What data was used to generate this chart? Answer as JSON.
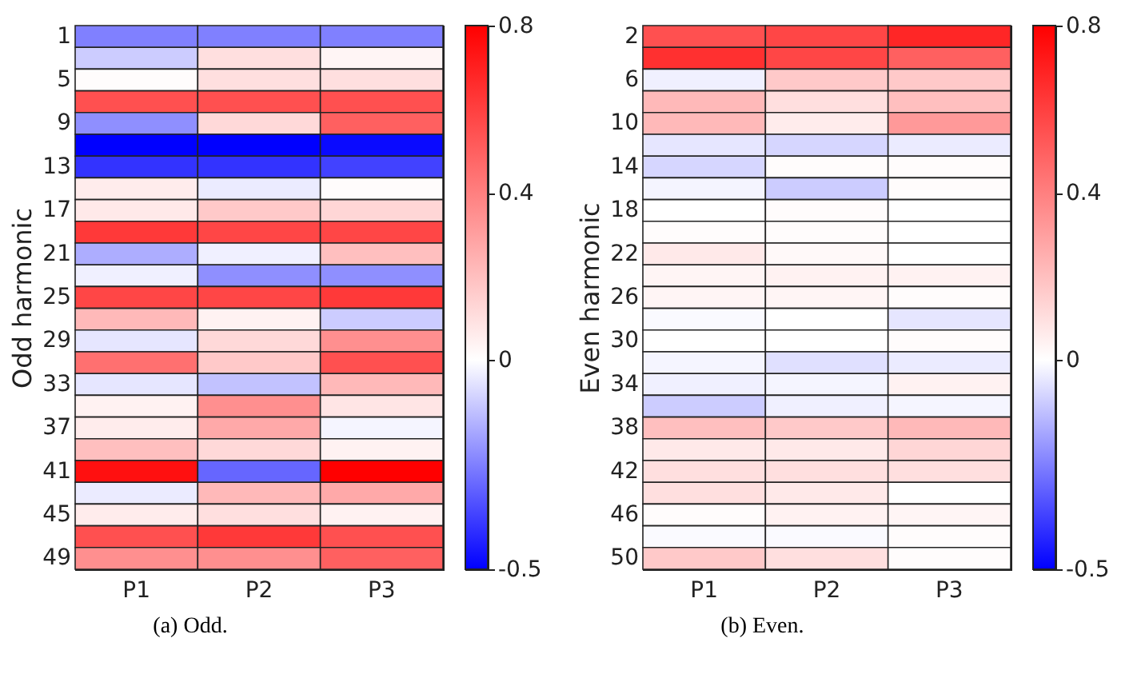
{
  "chart_data": [
    {
      "type": "heatmap",
      "title": "(a) Odd.",
      "ylabel": "Odd harmonic",
      "categories": [
        "P1",
        "P2",
        "P3"
      ],
      "y_categories": [
        "1",
        null,
        "5",
        null,
        "9",
        null,
        "13",
        null,
        "17",
        null,
        "21",
        null,
        "25",
        null,
        "29",
        null,
        "33",
        null,
        "37",
        null,
        "41",
        null,
        "45",
        null,
        "49"
      ],
      "cells": [
        [
          -0.25,
          -0.25,
          -0.25
        ],
        [
          -0.1,
          0.1,
          0.03
        ],
        [
          0.01,
          0.1,
          0.1
        ],
        [
          0.55,
          0.55,
          0.55
        ],
        [
          -0.22,
          0.12,
          0.5
        ],
        [
          -0.5,
          -0.5,
          -0.48
        ],
        [
          -0.4,
          -0.4,
          -0.37
        ],
        [
          0.06,
          -0.04,
          0.01
        ],
        [
          0.07,
          0.17,
          0.13
        ],
        [
          0.62,
          0.58,
          0.58
        ],
        [
          -0.16,
          -0.03,
          0.2
        ],
        [
          -0.03,
          -0.22,
          -0.22
        ],
        [
          0.58,
          0.58,
          0.62
        ],
        [
          0.22,
          0.04,
          -0.1
        ],
        [
          -0.05,
          0.12,
          0.35
        ],
        [
          0.45,
          0.17,
          0.55
        ],
        [
          -0.05,
          -0.12,
          0.22
        ],
        [
          0.04,
          0.35,
          0.08
        ],
        [
          0.06,
          0.27,
          -0.02
        ],
        [
          0.2,
          0.12,
          0.04
        ],
        [
          0.75,
          -0.3,
          0.8
        ],
        [
          -0.04,
          0.22,
          0.27
        ],
        [
          0.06,
          0.1,
          0.04
        ],
        [
          0.55,
          0.62,
          0.55
        ],
        [
          0.35,
          0.35,
          0.5
        ]
      ],
      "clim": [
        -0.5,
        0.8
      ],
      "cticks": [
        0.8,
        0.4,
        0,
        -0.5
      ]
    },
    {
      "type": "heatmap",
      "title": "(b) Even.",
      "ylabel": "Even harmonic",
      "categories": [
        "P1",
        "P2",
        "P3"
      ],
      "y_categories": [
        "2",
        null,
        "6",
        null,
        "10",
        null,
        "14",
        null,
        "18",
        null,
        "22",
        null,
        "26",
        null,
        "30",
        null,
        "34",
        null,
        "38",
        null,
        "42",
        null,
        "46",
        null,
        "50"
      ],
      "cells": [
        [
          0.55,
          0.58,
          0.68
        ],
        [
          0.65,
          0.58,
          0.5
        ],
        [
          -0.03,
          0.17,
          0.17
        ],
        [
          0.22,
          0.1,
          0.2
        ],
        [
          0.22,
          0.06,
          0.32
        ],
        [
          -0.05,
          -0.08,
          -0.04
        ],
        [
          -0.08,
          0.01,
          0.01
        ],
        [
          -0.02,
          -0.1,
          0.01
        ],
        [
          0,
          0.01,
          0
        ],
        [
          0.01,
          0.01,
          0
        ],
        [
          0.07,
          0.02,
          0
        ],
        [
          0.03,
          0.04,
          0.04
        ],
        [
          0.03,
          0.03,
          0.01
        ],
        [
          -0.01,
          0,
          -0.05
        ],
        [
          0,
          0,
          0.01
        ],
        [
          -0.02,
          -0.06,
          -0.04
        ],
        [
          -0.03,
          -0.02,
          0.04
        ],
        [
          -0.1,
          -0.03,
          -0.02
        ],
        [
          0.2,
          0.17,
          0.22
        ],
        [
          0.07,
          0.07,
          0.13
        ],
        [
          0.1,
          0.1,
          0.1
        ],
        [
          0.1,
          0.07,
          0
        ],
        [
          0.01,
          0.04,
          0.03
        ],
        [
          -0.01,
          -0.01,
          0.01
        ],
        [
          0.17,
          0.1,
          0.01
        ]
      ],
      "clim": [
        -0.5,
        0.8
      ],
      "cticks": [
        0.8,
        0.4,
        0,
        -0.5
      ]
    }
  ]
}
